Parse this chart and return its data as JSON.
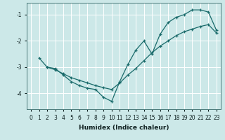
{
  "xlabel": "Humidex (Indice chaleur)",
  "bg_color": "#cce8e8",
  "line_color": "#1a6b6b",
  "grid_color": "#ffffff",
  "xlim": [
    -0.5,
    23.5
  ],
  "ylim": [
    -4.6,
    -0.55
  ],
  "yticks": [
    -4,
    -3,
    -2,
    -1
  ],
  "xticks": [
    0,
    1,
    2,
    3,
    4,
    5,
    6,
    7,
    8,
    9,
    10,
    11,
    12,
    13,
    14,
    15,
    16,
    17,
    18,
    19,
    20,
    21,
    22,
    23
  ],
  "line1_x": [
    1,
    2,
    3,
    4,
    5,
    6,
    7,
    8,
    9,
    10,
    11,
    12,
    13,
    14,
    15,
    16,
    17,
    18,
    19,
    20,
    21,
    22,
    23
  ],
  "line1_y": [
    -2.65,
    -3.0,
    -3.05,
    -3.3,
    -3.55,
    -3.7,
    -3.8,
    -3.85,
    -4.15,
    -4.3,
    -3.55,
    -2.9,
    -2.35,
    -2.0,
    -2.5,
    -1.75,
    -1.3,
    -1.1,
    -1.0,
    -0.82,
    -0.82,
    -0.9,
    -1.6
  ],
  "line2_x": [
    2,
    3,
    4,
    5,
    6,
    7,
    8,
    9,
    10,
    11,
    12,
    13,
    14,
    15,
    16,
    17,
    18,
    19,
    20,
    21,
    22,
    23
  ],
  "line2_y": [
    -3.0,
    -3.1,
    -3.25,
    -3.4,
    -3.5,
    -3.6,
    -3.7,
    -3.78,
    -3.85,
    -3.6,
    -3.3,
    -3.05,
    -2.75,
    -2.45,
    -2.2,
    -2.0,
    -1.8,
    -1.65,
    -1.55,
    -1.45,
    -1.38,
    -1.7
  ]
}
